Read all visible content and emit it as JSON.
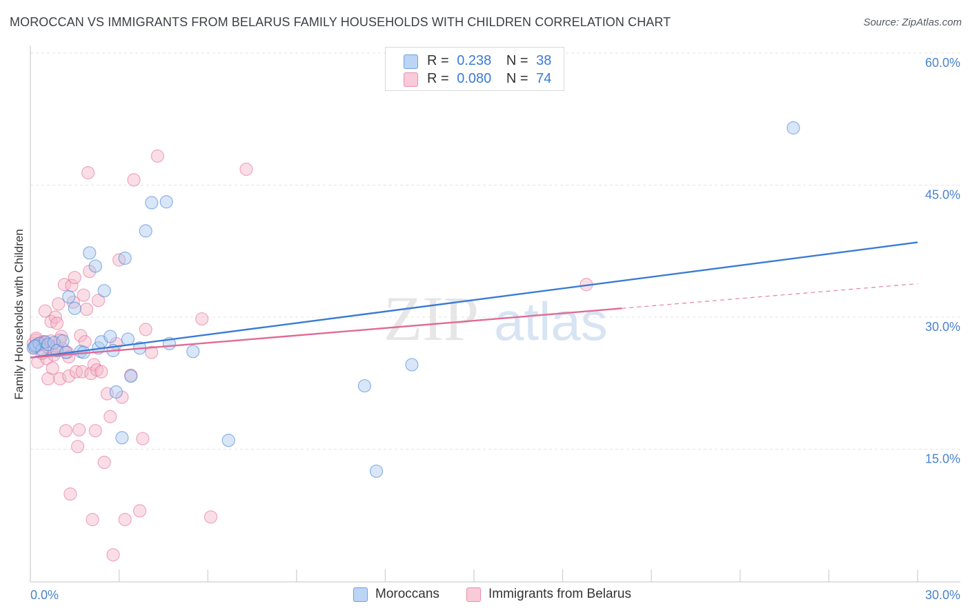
{
  "title": "MOROCCAN VS IMMIGRANTS FROM BELARUS FAMILY HOUSEHOLDS WITH CHILDREN CORRELATION CHART",
  "source": "Source: ZipAtlas.com",
  "watermark": {
    "zip": "ZIP",
    "atlas": "atlas"
  },
  "legend": {
    "rows": [
      {
        "r_label": "R =",
        "r_value": "0.238",
        "n_label": "N =",
        "n_value": "38",
        "color": "#a9c8f0"
      },
      {
        "r_label": "R =",
        "r_value": "0.080",
        "n_label": "N =",
        "n_value": "74",
        "color": "#f5b6c8"
      }
    ]
  },
  "bottom_legend": [
    "Moroccans",
    "Immigrants from Belarus"
  ],
  "chart_data": {
    "type": "scatter",
    "title": "MOROCCAN VS IMMIGRANTS FROM BELARUS FAMILY HOUSEHOLDS WITH CHILDREN CORRELATION CHART",
    "xlabel": "",
    "ylabel": "Family Households with Children",
    "xlim": [
      0,
      30
    ],
    "ylim": [
      0,
      60
    ],
    "x_tick_labels": [
      "0.0%",
      "30.0%"
    ],
    "y_tick_labels": [
      "15.0%",
      "30.0%",
      "45.0%",
      "60.0%"
    ],
    "y_ticks": [
      15,
      30,
      45,
      60
    ],
    "series": [
      {
        "name": "Moroccans",
        "color": "#3a7bd5",
        "fill": "#a9c8f0",
        "r": 0.238,
        "n": 38,
        "trend": {
          "x": [
            0,
            30
          ],
          "y": [
            25.4,
            38.5
          ],
          "dashed_from": null
        },
        "points": [
          [
            0.1,
            26.5
          ],
          [
            0.2,
            26.8
          ],
          [
            0.3,
            27.0
          ],
          [
            0.4,
            26.3
          ],
          [
            0.5,
            27.2
          ],
          [
            0.6,
            26.9
          ],
          [
            0.8,
            27.1
          ],
          [
            0.9,
            26.2
          ],
          [
            1.1,
            27.3
          ],
          [
            1.2,
            26.0
          ],
          [
            1.3,
            32.3
          ],
          [
            1.5,
            31.0
          ],
          [
            1.7,
            26.1
          ],
          [
            1.8,
            26.0
          ],
          [
            2.0,
            37.3
          ],
          [
            2.2,
            35.8
          ],
          [
            2.3,
            26.5
          ],
          [
            2.4,
            27.2
          ],
          [
            2.5,
            33.0
          ],
          [
            2.7,
            27.8
          ],
          [
            2.8,
            26.2
          ],
          [
            2.9,
            21.5
          ],
          [
            3.1,
            16.3
          ],
          [
            3.2,
            36.7
          ],
          [
            3.3,
            27.5
          ],
          [
            3.4,
            23.3
          ],
          [
            3.7,
            26.5
          ],
          [
            3.9,
            39.8
          ],
          [
            4.1,
            43.0
          ],
          [
            4.6,
            43.1
          ],
          [
            4.7,
            27.0
          ],
          [
            5.5,
            26.1
          ],
          [
            6.7,
            16.0
          ],
          [
            11.3,
            22.2
          ],
          [
            11.7,
            12.5
          ],
          [
            12.9,
            24.6
          ],
          [
            25.8,
            51.5
          ],
          [
            0.15,
            26.7
          ]
        ]
      },
      {
        "name": "Immigrants from Belarus",
        "color": "#e06a95",
        "fill": "#f5b6c8",
        "r": 0.08,
        "n": 74,
        "trend": {
          "x": [
            0,
            30
          ],
          "y": [
            25.4,
            33.8
          ],
          "dashed_from": 20
        },
        "points": [
          [
            0.1,
            27.0
          ],
          [
            0.15,
            26.5
          ],
          [
            0.2,
            27.4
          ],
          [
            0.25,
            24.9
          ],
          [
            0.3,
            26.8
          ],
          [
            0.35,
            27.1
          ],
          [
            0.4,
            26.9
          ],
          [
            0.45,
            27.2
          ],
          [
            0.5,
            30.7
          ],
          [
            0.55,
            25.3
          ],
          [
            0.6,
            23.0
          ],
          [
            0.65,
            26.4
          ],
          [
            0.7,
            29.5
          ],
          [
            0.75,
            24.2
          ],
          [
            0.8,
            25.7
          ],
          [
            0.85,
            30.0
          ],
          [
            0.9,
            29.3
          ],
          [
            0.95,
            31.5
          ],
          [
            1.0,
            23.0
          ],
          [
            1.05,
            27.8
          ],
          [
            1.1,
            26.4
          ],
          [
            1.15,
            33.7
          ],
          [
            1.2,
            17.1
          ],
          [
            1.25,
            26.0
          ],
          [
            1.3,
            23.3
          ],
          [
            1.35,
            9.9
          ],
          [
            1.4,
            33.6
          ],
          [
            1.45,
            31.7
          ],
          [
            1.5,
            34.5
          ],
          [
            1.55,
            23.8
          ],
          [
            1.6,
            15.3
          ],
          [
            1.65,
            17.2
          ],
          [
            1.7,
            27.9
          ],
          [
            1.75,
            23.8
          ],
          [
            1.8,
            32.5
          ],
          [
            1.85,
            27.2
          ],
          [
            1.9,
            30.9
          ],
          [
            1.95,
            46.4
          ],
          [
            2.0,
            35.2
          ],
          [
            2.05,
            23.6
          ],
          [
            2.1,
            7.0
          ],
          [
            2.15,
            24.6
          ],
          [
            2.2,
            17.1
          ],
          [
            2.25,
            24.0
          ],
          [
            2.3,
            31.9
          ],
          [
            2.4,
            23.8
          ],
          [
            2.5,
            13.5
          ],
          [
            2.6,
            21.3
          ],
          [
            2.7,
            18.7
          ],
          [
            2.8,
            3.0
          ],
          [
            2.9,
            27.0
          ],
          [
            3.0,
            36.5
          ],
          [
            3.1,
            20.9
          ],
          [
            3.2,
            7.0
          ],
          [
            3.4,
            23.4
          ],
          [
            3.5,
            45.6
          ],
          [
            3.7,
            8.0
          ],
          [
            3.8,
            16.2
          ],
          [
            3.9,
            28.6
          ],
          [
            4.1,
            26.0
          ],
          [
            4.3,
            48.3
          ],
          [
            5.8,
            29.8
          ],
          [
            6.1,
            7.3
          ],
          [
            7.3,
            46.8
          ],
          [
            18.8,
            33.7
          ],
          [
            0.3,
            26.9
          ],
          [
            0.5,
            27.1
          ],
          [
            0.7,
            27.3
          ],
          [
            0.9,
            26.7
          ],
          [
            1.0,
            27.4
          ],
          [
            0.4,
            25.9
          ],
          [
            1.3,
            25.5
          ],
          [
            0.2,
            27.6
          ],
          [
            0.6,
            26.6
          ]
        ]
      }
    ]
  }
}
